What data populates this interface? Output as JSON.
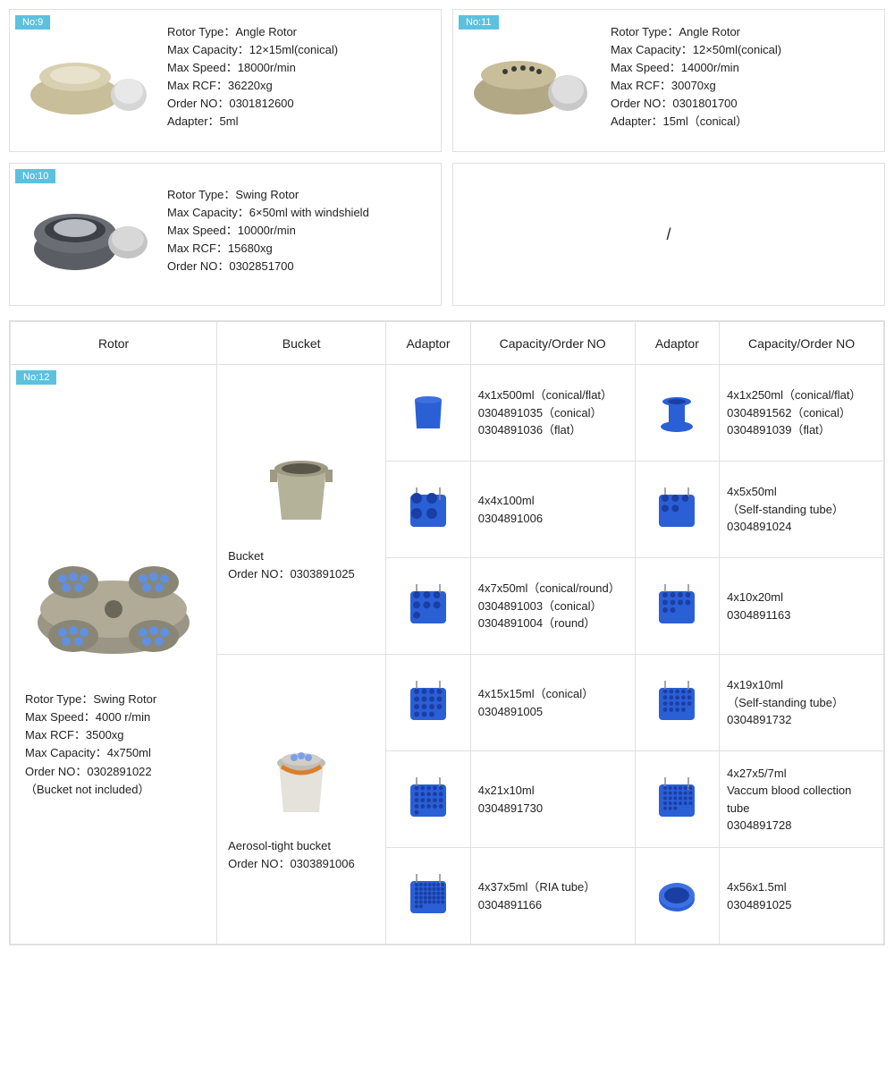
{
  "colors": {
    "badge_bg": "#5cc1df",
    "border": "#e0e0e0",
    "adaptor_blue": "#2b5fd6",
    "rotor_gold": "#c8be9a",
    "rotor_gray": "#6a6e74",
    "bucket_metal": "#b5b29a"
  },
  "cards": [
    {
      "badge": "No:9",
      "lines": [
        "Rotor Type：Angle Rotor",
        "Max Capacity：12×15ml(conical)",
        "Max Speed：18000r/min",
        "Max RCF：36220xg",
        "Order NO：0301812600",
        "Adapter：5ml"
      ]
    },
    {
      "badge": "No:11",
      "lines": [
        "Rotor Type：Angle Rotor",
        "Max Capacity：12×50ml(conical)",
        "Max Speed：14000r/min",
        "Max RCF：30070xg",
        "Order NO：0301801700",
        "Adapter：15ml（conical）"
      ]
    },
    {
      "badge": "No:10",
      "lines": [
        "Rotor Type：Swing Rotor",
        "Max Capacity：6×50ml with windshield",
        "Max Speed：10000r/min",
        "Max RCF：15680xg",
        "Order NO：0302851700"
      ]
    },
    {
      "empty": "/"
    }
  ],
  "table": {
    "headers": [
      "Rotor",
      "Bucket",
      "Adaptor",
      "Capacity/Order NO",
      "Adaptor",
      "Capacity/Order NO"
    ],
    "rotor": {
      "badge": "No:12",
      "lines": [
        "Rotor Type：Swing Rotor",
        "Max Speed：4000 r/min",
        "Max RCF：3500xg",
        "Max Capacity：4x750ml",
        "Order NO：0302891022",
        "（Bucket not included）"
      ]
    },
    "buckets": [
      {
        "label1": "Bucket",
        "label2": "Order NO：0303891025"
      },
      {
        "label1": "Aerosol-tight bucket",
        "label2": "Order NO：0303891006"
      }
    ],
    "rows": [
      {
        "cap1": [
          "4x1x500ml（conical/flat）",
          "0304891035（conical）",
          "0304891036（flat）"
        ],
        "cap2": [
          "4x1x250ml（conical/flat）",
          "0304891562（conical）",
          "0304891039（flat）"
        ],
        "shape1": "cup",
        "shape2": "spool"
      },
      {
        "cap1": [
          "4x4x100ml",
          "0304891006"
        ],
        "cap2": [
          "4x5x50ml",
          "（Self-standing tube）",
          "0304891024"
        ],
        "shape1": "rack4",
        "shape2": "rack5"
      },
      {
        "cap1": [
          "4x7x50ml（conical/round）",
          "0304891003（conical）",
          "0304891004（round）"
        ],
        "cap2": [
          "4x10x20ml",
          "0304891163"
        ],
        "shape1": "rack7",
        "shape2": "rack10"
      },
      {
        "cap1": [
          "4x15x15ml（conical）",
          "0304891005"
        ],
        "cap2": [
          "4x19x10ml",
          "（Self-standing tube）",
          "0304891732"
        ],
        "shape1": "rack15",
        "shape2": "rack19"
      },
      {
        "cap1": [
          "4x21x10ml",
          "0304891730"
        ],
        "cap2": [
          "4x27x5/7ml",
          "Vaccum blood collection tube",
          "0304891728"
        ],
        "shape1": "rack21",
        "shape2": "rack27"
      },
      {
        "cap1": [
          "4x37x5ml（RIA tube）",
          "0304891166"
        ],
        "cap2": [
          "4x56x1.5ml",
          "0304891025"
        ],
        "shape1": "rack37",
        "shape2": "disc"
      }
    ]
  }
}
